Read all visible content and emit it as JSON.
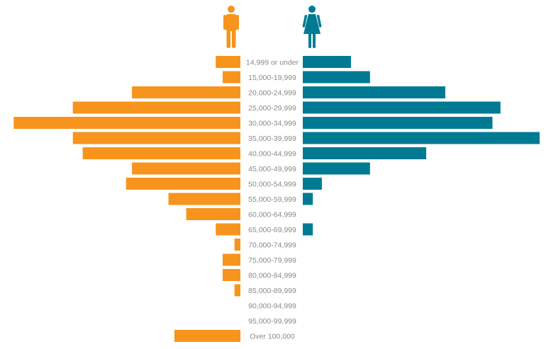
{
  "chart_data": {
    "type": "bar",
    "orientation": "horizontal-diverging",
    "categories": [
      "14,999 or under",
      "15,000-19,999",
      "20,000-24,999",
      "25,000-29,999",
      "30,000-34,999",
      "35,000-39,999",
      "40,000-44,999",
      "45,000-49,999",
      "50,000-54,999",
      "55,000-59,999",
      "60,000-64,999",
      "65,000-69,999",
      "70,000-74,999",
      "75,000-79,999",
      "80,000-84,999",
      "85,000-89,999",
      "90,000-94,999",
      "95,000-99,999",
      "Over 100,000"
    ],
    "series": [
      {
        "icon": "male-icon",
        "color": "#F7941D",
        "side": "left",
        "values": [
          2.5,
          1.8,
          11,
          17,
          23,
          17,
          16,
          11,
          11.6,
          7.3,
          5.5,
          2.5,
          0.6,
          1.8,
          1.8,
          0.6,
          0,
          0,
          6.7
        ]
      },
      {
        "icon": "female-icon",
        "color": "#007A93",
        "side": "right",
        "values": [
          4.8,
          6.7,
          14.2,
          19.7,
          18.9,
          23.6,
          12.3,
          6.7,
          1.9,
          1.0,
          0,
          1.0,
          0,
          0,
          0,
          0,
          0,
          0,
          0
        ]
      }
    ],
    "xlim": [
      0,
      23.6
    ],
    "grid": false,
    "legend": "icons-top-center"
  }
}
